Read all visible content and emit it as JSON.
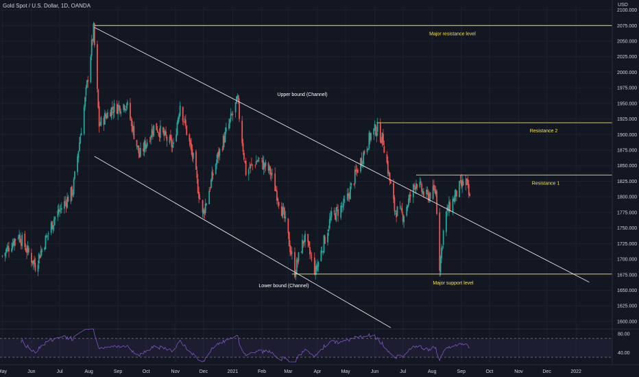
{
  "header": {
    "symbol_line": "Gold Spot / U.S. Dollar, 1D, OANDA",
    "currency_unit": "USD"
  },
  "colors": {
    "background": "#131722",
    "up": "#26a69a",
    "down": "#ef5350",
    "level_line": "#f3e64a",
    "channel_line": "#e6e6e6",
    "rsi_line": "#7e57c2",
    "rsi_band": "#6a4ea6",
    "axis_text": "#d1d4dc"
  },
  "chart_data": {
    "type": "candlestick",
    "title": "Gold Spot / U.S. Dollar, 1D, OANDA",
    "ylabel": "USD",
    "ylim": [
      1590,
      2105
    ],
    "y_ticks": [
      "1600.000",
      "1625.000",
      "1650.000",
      "1675.000",
      "1700.000",
      "1725.000",
      "1750.000",
      "1775.000",
      "1800.000",
      "1825.000",
      "1850.000",
      "1875.000",
      "1900.000",
      "1925.000",
      "1950.000",
      "1975.000",
      "2000.000",
      "2025.000",
      "2050.000",
      "2075.000",
      "2100.000"
    ],
    "x_ticks": [
      "May",
      "Jun",
      "Jul",
      "Aug",
      "Sep",
      "Oct",
      "Nov",
      "Dec",
      "2021",
      "Feb",
      "Mar",
      "Apr",
      "May",
      "Jun",
      "Jul",
      "Aug",
      "Sep",
      "Oct",
      "Nov",
      "Dec",
      "2022"
    ],
    "price_path": [
      {
        "date": "2020-05-01",
        "price": 1705
      },
      {
        "date": "2020-05-18",
        "price": 1740
      },
      {
        "date": "2020-06-05",
        "price": 1690
      },
      {
        "date": "2020-06-25",
        "price": 1765
      },
      {
        "date": "2020-07-15",
        "price": 1810
      },
      {
        "date": "2020-07-28",
        "price": 1955
      },
      {
        "date": "2020-08-06",
        "price": 2068
      },
      {
        "date": "2020-08-12",
        "price": 1915
      },
      {
        "date": "2020-08-24",
        "price": 1940
      },
      {
        "date": "2020-09-10",
        "price": 1950
      },
      {
        "date": "2020-09-24",
        "price": 1865
      },
      {
        "date": "2020-10-10",
        "price": 1915
      },
      {
        "date": "2020-10-30",
        "price": 1880
      },
      {
        "date": "2020-11-06",
        "price": 1950
      },
      {
        "date": "2020-11-20",
        "price": 1860
      },
      {
        "date": "2020-11-30",
        "price": 1770
      },
      {
        "date": "2020-12-15",
        "price": 1860
      },
      {
        "date": "2021-01-06",
        "price": 1955
      },
      {
        "date": "2021-01-15",
        "price": 1840
      },
      {
        "date": "2021-01-28",
        "price": 1860
      },
      {
        "date": "2021-02-10",
        "price": 1840
      },
      {
        "date": "2021-02-25",
        "price": 1765
      },
      {
        "date": "2021-03-08",
        "price": 1680
      },
      {
        "date": "2021-03-18",
        "price": 1735
      },
      {
        "date": "2021-03-30",
        "price": 1680
      },
      {
        "date": "2021-04-15",
        "price": 1765
      },
      {
        "date": "2021-05-01",
        "price": 1790
      },
      {
        "date": "2021-05-15",
        "price": 1850
      },
      {
        "date": "2021-05-28",
        "price": 1900
      },
      {
        "date": "2021-06-03",
        "price": 1910
      },
      {
        "date": "2021-06-10",
        "price": 1890
      },
      {
        "date": "2021-06-22",
        "price": 1780
      },
      {
        "date": "2021-07-01",
        "price": 1770
      },
      {
        "date": "2021-07-15",
        "price": 1825
      },
      {
        "date": "2021-07-25",
        "price": 1800
      },
      {
        "date": "2021-08-05",
        "price": 1810
      },
      {
        "date": "2021-08-09",
        "price": 1690
      },
      {
        "date": "2021-08-15",
        "price": 1770
      },
      {
        "date": "2021-08-30",
        "price": 1815
      },
      {
        "date": "2021-09-06",
        "price": 1825
      },
      {
        "date": "2021-09-10",
        "price": 1795
      }
    ],
    "levels": [
      {
        "name": "Major resistance level",
        "price": 2075
      },
      {
        "name": "Resistance 2",
        "price": 1919
      },
      {
        "name": "Resistance 1",
        "price": 1835
      },
      {
        "name": "Major support level",
        "price": 1676
      }
    ],
    "channel": {
      "upper": {
        "label": "Upper bound (Channel)",
        "start": {
          "date": "2020-08-07",
          "price": 2072
        },
        "end": {
          "date": "2022-01-15",
          "price": 1663
        }
      },
      "lower": {
        "label": "Lower bound (Channel)",
        "start": {
          "date": "2020-08-07",
          "price": 1865
        },
        "end": {
          "date": "2021-06-18",
          "price": 1590
        }
      }
    },
    "rsi": {
      "ylim": [
        20,
        90
      ],
      "levels": [
        70,
        30
      ],
      "y_ticks": [
        "80.00",
        "40.00"
      ],
      "series_note": ""
    }
  }
}
